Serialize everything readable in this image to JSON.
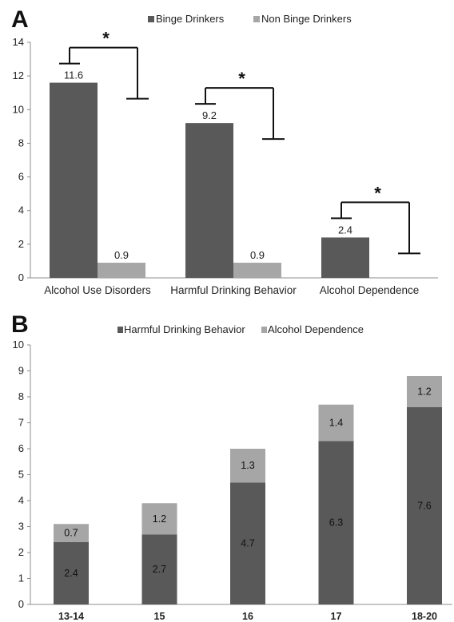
{
  "colors": {
    "dark": "#595959",
    "light": "#a6a6a6",
    "axis": "#8c8c8c",
    "bracket": "#111111"
  },
  "chart_data": [
    {
      "panel": "A",
      "type": "bar",
      "categories": [
        "Alcohol Use Disorders",
        "Harmful Drinking Behavior",
        "Alcohol Dependence"
      ],
      "series": [
        {
          "name": "Binge Drinkers",
          "values": [
            11.6,
            9.2,
            2.4
          ],
          "labels": [
            "11.6",
            "9.2",
            "2.4"
          ]
        },
        {
          "name": "Non Binge Drinkers",
          "values": [
            0.9,
            0.9,
            null
          ],
          "labels": [
            "0.9",
            "0.9",
            ""
          ]
        }
      ],
      "ylim": [
        0,
        14
      ],
      "yticks": [
        "0",
        "2",
        "4",
        "6",
        "8",
        "10",
        "12",
        "14"
      ],
      "significance": [
        "*",
        "*",
        "*"
      ],
      "grid": false,
      "legend": "top"
    },
    {
      "panel": "B",
      "type": "bar",
      "stacked": true,
      "categories": [
        "13-14",
        "15",
        "16",
        "17",
        "18-20"
      ],
      "series": [
        {
          "name": "Harmful Drinking Behavior",
          "values": [
            2.4,
            2.7,
            4.7,
            6.3,
            7.6
          ],
          "labels": [
            "2.4",
            "2.7",
            "4.7",
            "6.3",
            "7.6"
          ]
        },
        {
          "name": "Alcohol Dependence",
          "values": [
            0.7,
            1.2,
            1.3,
            1.4,
            1.2
          ],
          "labels": [
            "0.7",
            "1.2",
            "1.3",
            "1.4",
            "1.2"
          ]
        }
      ],
      "ylim": [
        0,
        10
      ],
      "yticks": [
        "0",
        "1",
        "2",
        "3",
        "4",
        "5",
        "6",
        "7",
        "8",
        "9",
        "10"
      ],
      "grid": false,
      "legend": "top"
    }
  ]
}
